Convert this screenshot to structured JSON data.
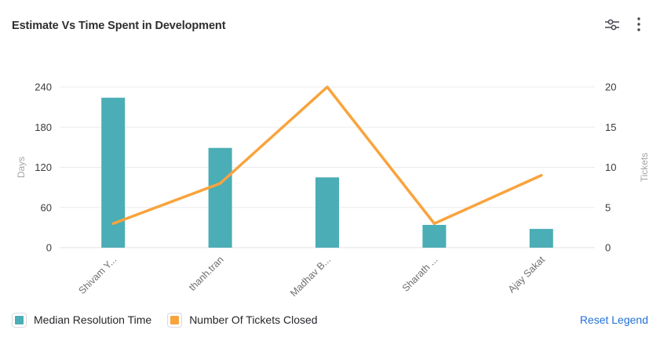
{
  "header": {
    "title": "Estimate Vs Time Spent in Development",
    "icon_color": "#44474d"
  },
  "chart_data": {
    "type": "combo",
    "categories": [
      "Shivam Y...",
      "thanh.tran",
      "Madhav B...",
      "Sharath ...",
      "Ajay Sakat"
    ],
    "series": [
      {
        "name": "Median Resolution Time",
        "type": "bar",
        "axis": "left",
        "color": "#4badb5",
        "values": [
          224,
          149,
          105,
          34,
          28
        ]
      },
      {
        "name": "Number Of Tickets Closed",
        "type": "line",
        "axis": "right",
        "color": "#f9a33c",
        "values": [
          3,
          8,
          20,
          3,
          9
        ]
      }
    ],
    "y_left": {
      "label": "Days",
      "min": 0,
      "max": 240,
      "ticks": [
        0,
        60,
        120,
        180,
        240
      ]
    },
    "y_right": {
      "label": "Tickets",
      "min": 0,
      "max": 20,
      "ticks": [
        0,
        5,
        10,
        15,
        20
      ]
    },
    "grid": true,
    "x_label_rotation": -45,
    "legend_position": "bottom"
  },
  "legend": {
    "items": [
      {
        "label": "Median Resolution Time",
        "color": "#4badb5"
      },
      {
        "label": "Number Of Tickets Closed",
        "color": "#f9a33c"
      }
    ],
    "reset_label": "Reset Legend",
    "reset_color": "#2171d6"
  }
}
